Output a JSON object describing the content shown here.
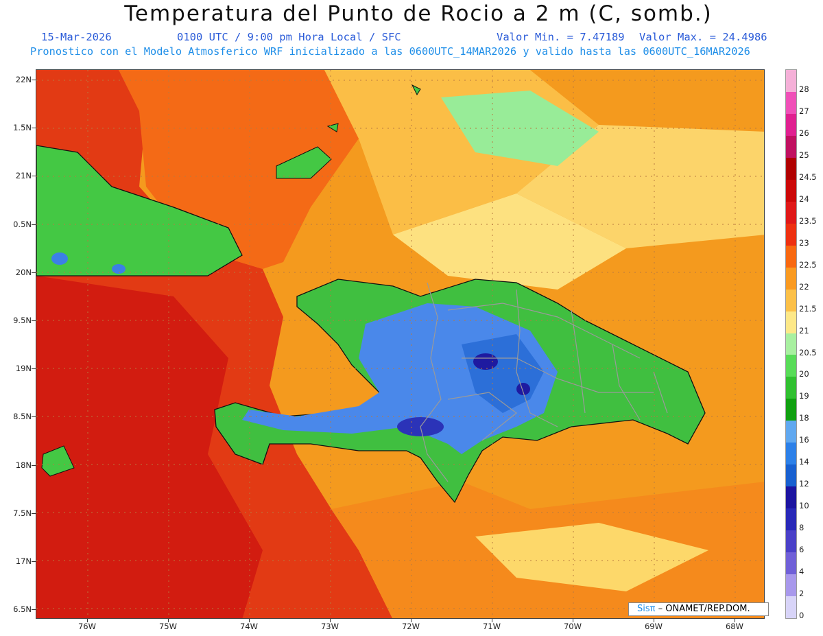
{
  "header": {
    "title": "Temperatura del Punto de Rocio a 2 m (C, somb.)",
    "date": "15-Mar-2026",
    "time": "0100 UTC / 9:00 pm Hora Local / SFC",
    "min_label": "Valor Min. = 7.47189",
    "max_label": "Valor Max. = 24.4986",
    "model_line": "Pronostico con el Modelo Atmosferico WRF inicializado a las 0600UTC_14MAR2026 y valido hasta las  0600UTC_16MAR2026"
  },
  "axes": {
    "lat_labels": [
      "22N",
      "1.5N",
      "21N",
      "0.5N",
      "20N",
      "9.5N",
      "19N",
      "8.5N",
      "18N",
      "7.5N",
      "17N",
      "6.5N"
    ],
    "lon_labels": [
      "76W",
      "75W",
      "74W",
      "73W",
      "72W",
      "71W",
      "70W",
      "69W",
      "68W"
    ]
  },
  "colorbar": {
    "labels": [
      "28",
      "27",
      "26",
      "25",
      "24.5",
      "24",
      "23.5",
      "23",
      "22.5",
      "22",
      "21.5",
      "21",
      "20.5",
      "20",
      "19",
      "18",
      "16",
      "14",
      "12",
      "10",
      "8",
      "6",
      "4",
      "2",
      "0"
    ],
    "colors": [
      "#f5b0d8",
      "#f050b8",
      "#e02090",
      "#c01060",
      "#b00000",
      "#cc0808",
      "#e01818",
      "#ee3010",
      "#f86810",
      "#fa9a20",
      "#fcc048",
      "#fde888",
      "#a8f0a0",
      "#58dc58",
      "#30c030",
      "#10a010",
      "#60a8f0",
      "#2c80e8",
      "#1860d0",
      "#1c14a0",
      "#2828b8",
      "#4a40c8",
      "#7060d8",
      "#a898ec",
      "#d8d4f8"
    ]
  },
  "map": {
    "ocean_color": "#f5a020",
    "land_color": "#40c040",
    "cool_land_color": "#3d7ee8",
    "warm_sea_color": "#e43015"
  },
  "credit": {
    "logo": "Sisπ",
    "text": " –  ONAMET/REP.DOM."
  }
}
